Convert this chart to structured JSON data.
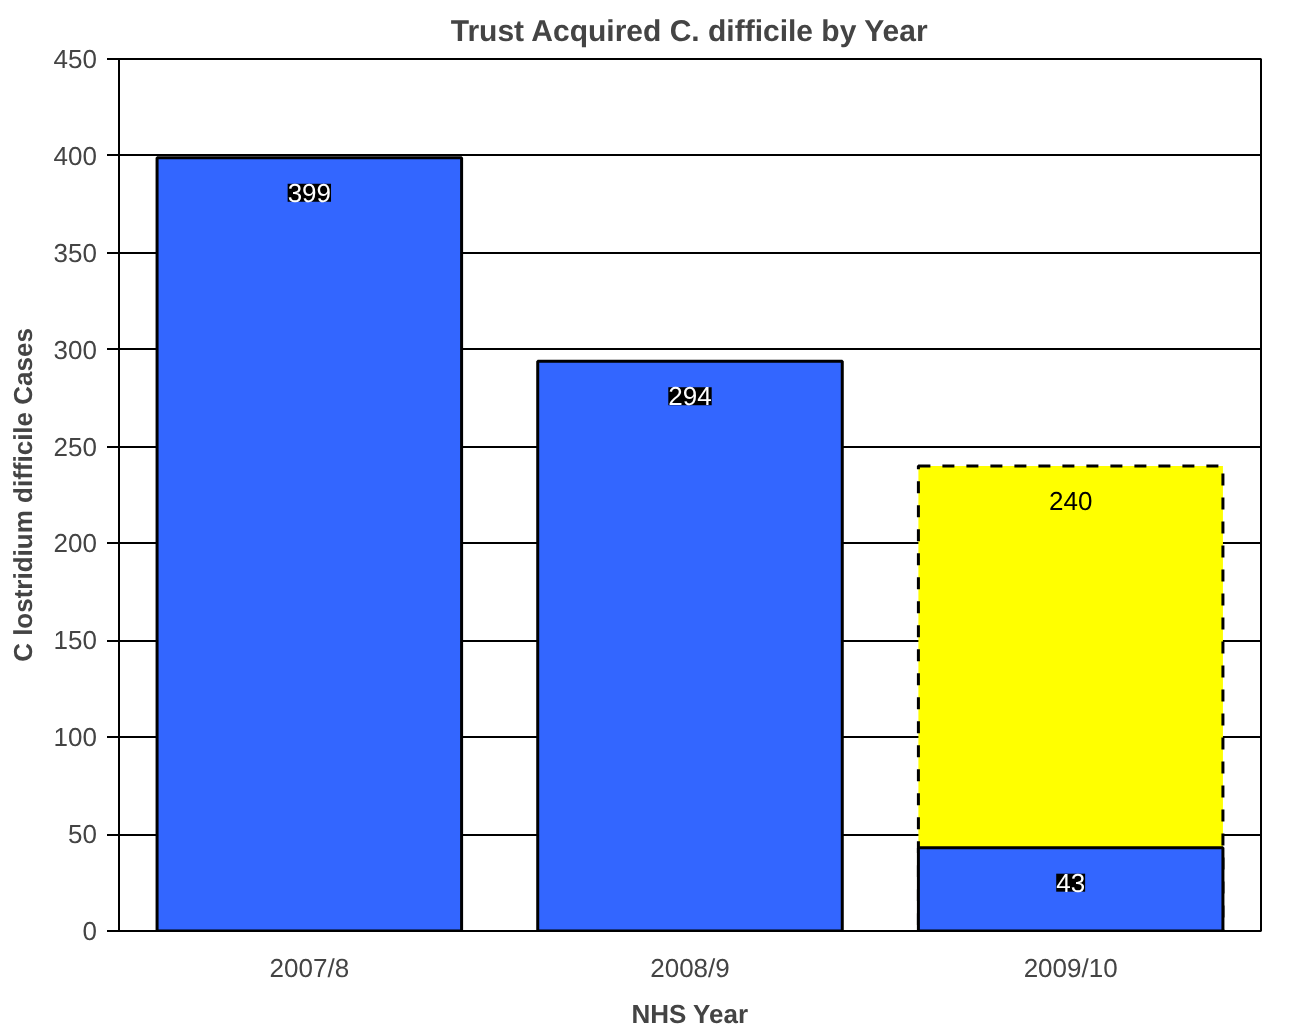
{
  "chart_data": {
    "type": "bar",
    "title": "Trust Acquired C. difficile by Year",
    "xlabel": "NHS Year",
    "ylabel": "C lostridium difficile Cases",
    "categories": [
      "2007/8",
      "2008/9",
      "2009/10"
    ],
    "series": [
      {
        "color": "#ffff00",
        "values": [
          null,
          null,
          240
        ],
        "line_style": "dashed"
      },
      {
        "color": "#3366ff",
        "values": [
          399,
          294,
          43
        ]
      }
    ],
    "ylim": [
      0,
      450
    ],
    "yticks": [
      0,
      50,
      100,
      150,
      200,
      250,
      300,
      350,
      400,
      450
    ],
    "grid": "y",
    "data_labels": true
  }
}
